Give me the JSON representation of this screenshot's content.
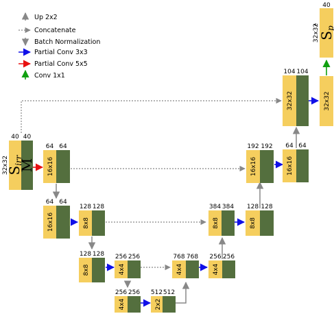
{
  "colors": {
    "yellow": "#F5CE5E",
    "green": "#546F3E",
    "gray_arrow": "#888888",
    "blue_arrow": "#1010E8",
    "red_arrow": "#E81010",
    "green_arrow": "#10A010"
  },
  "legend": [
    {
      "icon": "up-arrow-icon",
      "label": "Up 2x2"
    },
    {
      "icon": "dotted-arrow-icon",
      "label": "Concatenate"
    },
    {
      "icon": "down-arrow-icon",
      "label": "Batch Normalization"
    },
    {
      "icon": "blue-arrow-icon",
      "label": "Partial Conv 3x3"
    },
    {
      "icon": "red-arrow-icon",
      "label": "Partial Conv 5x5"
    },
    {
      "icon": "green-arrow-icon",
      "label": "Conv 1x1"
    }
  ],
  "input_block": {
    "top_left": "40",
    "top_right": "40",
    "resolution": "32x32",
    "label_s": "S",
    "label_s_sub": "irr",
    "label_m": "M"
  },
  "blocks": [
    {
      "id": "enc1",
      "top_left": "64",
      "top_right": "64",
      "resolution": "16x16"
    },
    {
      "id": "enc2",
      "top_left": "64",
      "top_right": "64",
      "resolution": "16x16"
    },
    {
      "id": "enc3",
      "top_left": "128",
      "top_right": "128",
      "resolution": "8x8"
    },
    {
      "id": "enc4",
      "top_left": "128",
      "top_right": "128",
      "resolution": "8x8"
    },
    {
      "id": "enc5",
      "top_left": "256",
      "top_right": "256",
      "resolution": "4x4"
    },
    {
      "id": "enc6",
      "top_left": "256",
      "top_right": "256",
      "resolution": "4x4"
    },
    {
      "id": "bottleneck",
      "top_left": "512",
      "top_right": "512",
      "resolution": "2x2"
    },
    {
      "id": "dec1",
      "top_left": "768",
      "top_right": "768",
      "resolution": "4x4"
    },
    {
      "id": "dec2",
      "top_left": "256",
      "top_right": "256",
      "resolution": "4x4"
    },
    {
      "id": "dec3",
      "top_left": "384",
      "top_right": "384",
      "resolution": "8x8"
    },
    {
      "id": "dec4",
      "top_left": "128",
      "top_right": "128",
      "resolution": "8x8"
    },
    {
      "id": "dec5",
      "top_left": "192",
      "top_right": "192",
      "resolution": "16x16"
    },
    {
      "id": "dec6",
      "top_left": "64",
      "top_right": "64",
      "resolution": "16x16"
    },
    {
      "id": "dec7",
      "top_left": "104",
      "top_right": "104",
      "resolution": "32x32"
    },
    {
      "id": "dec8",
      "top_left": "",
      "top_right": "",
      "resolution": "32x32"
    }
  ],
  "output_block": {
    "channels": "40",
    "resolution": "32x32",
    "label_s": "S",
    "label_s_sub": "p"
  }
}
